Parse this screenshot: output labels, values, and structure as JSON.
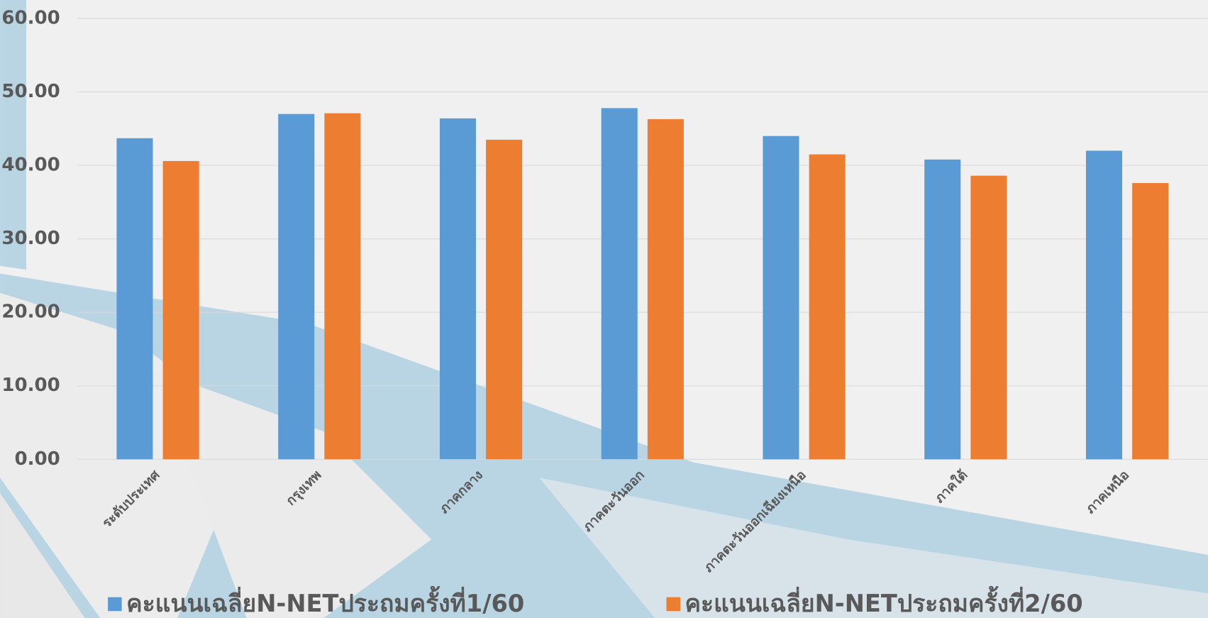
{
  "chart_data": {
    "type": "bar",
    "categories": [
      "ระดับประเทศ",
      "กรุงเทพ",
      "ภาคกลาง",
      "ภาคตะวันออก",
      "ภาคตะวันออกเฉียงเหนือ",
      "ภาคใต้",
      "ภาคเหนือ"
    ],
    "series": [
      {
        "name": "คะแนนเฉลี่ยN-NETประถมครั้งที่1/60",
        "color": "#5b9bd5",
        "values": [
          43.7,
          47.0,
          46.4,
          47.8,
          44.0,
          40.8,
          42.0
        ]
      },
      {
        "name": "คะแนนเฉลี่ยN-NETประถมครั้งที่2/60",
        "color": "#ed7d31",
        "values": [
          40.6,
          47.1,
          43.5,
          46.3,
          41.5,
          38.6,
          37.6
        ]
      }
    ],
    "ylim": [
      0,
      60
    ],
    "yticks": [
      {
        "value": 0,
        "label": "0.00"
      },
      {
        "value": 10,
        "label": "10.00"
      },
      {
        "value": 20,
        "label": "20.00"
      },
      {
        "value": 30,
        "label": "30.00"
      },
      {
        "value": 40,
        "label": "40.00"
      },
      {
        "value": 50,
        "label": "50.00"
      },
      {
        "value": 60,
        "label": "60.00"
      }
    ],
    "grid": true
  }
}
